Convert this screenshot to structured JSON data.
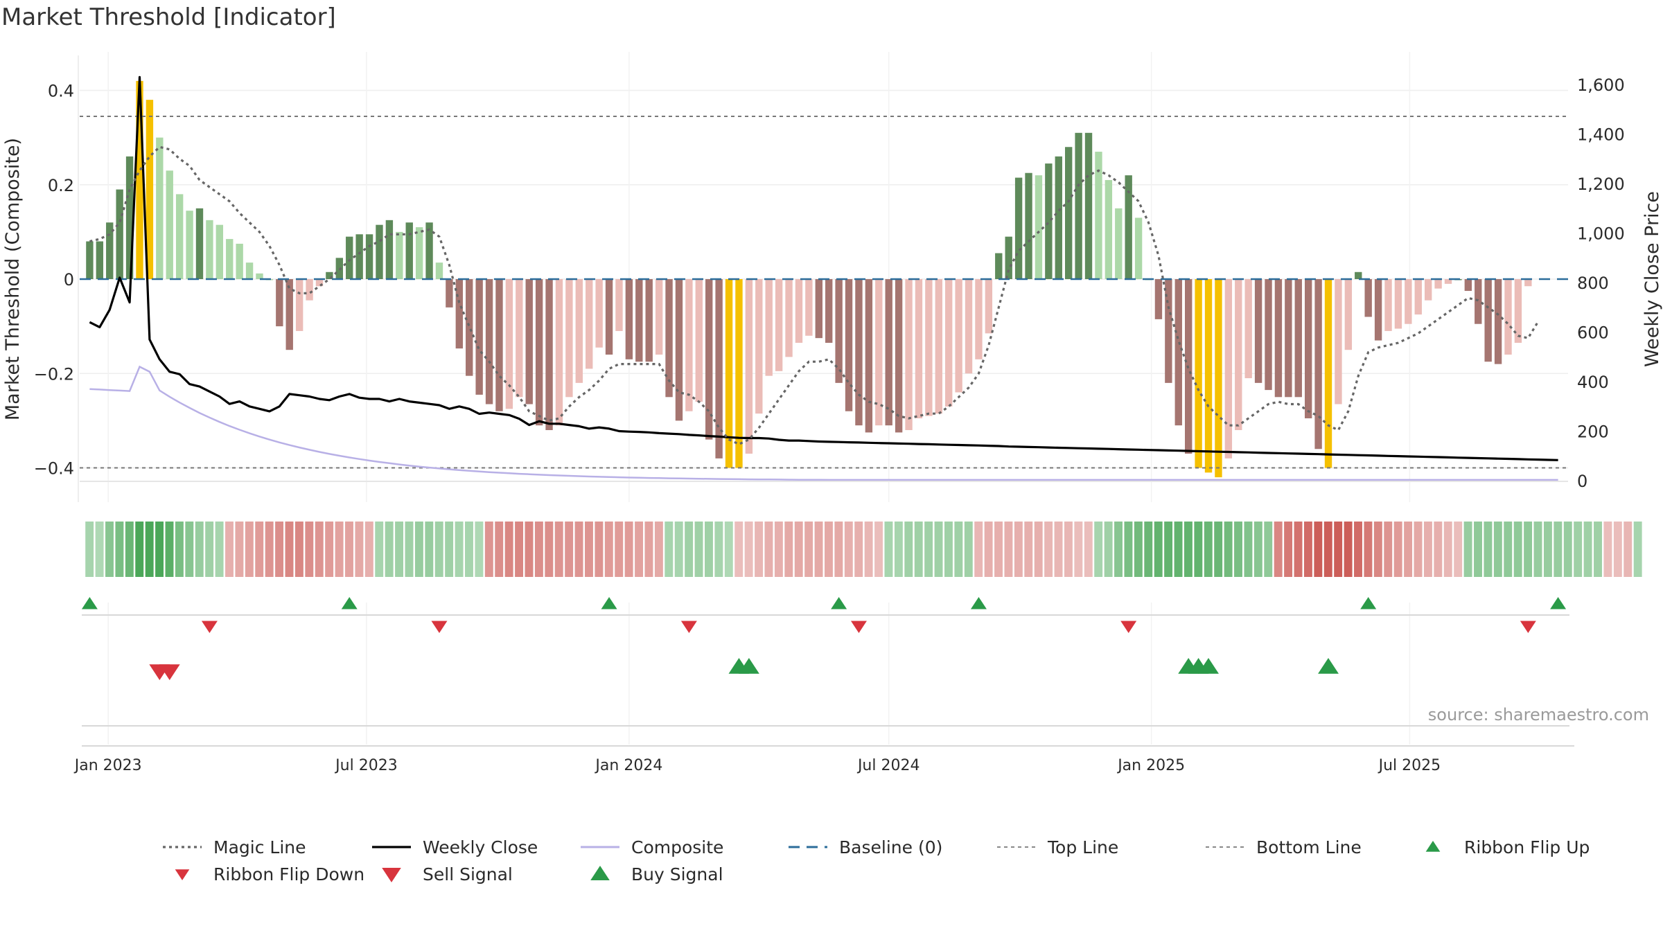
{
  "title": "Market Threshold [Indicator]",
  "source": "source: sharemaestro.com",
  "colors": {
    "dark_green": "#5e8a5a",
    "light_green": "#acd8a8",
    "dark_red": "#a57570",
    "light_red": "#ebbcb7",
    "gold": "#f5c000",
    "close": "#000000",
    "composite": "#b8b0e6",
    "magic": "#666666",
    "baseline": "#2b6c9a",
    "signal_green": "#2a9a48",
    "signal_red": "#d8343d"
  },
  "chart_data": {
    "type": "bar",
    "title": "Market Threshold [Indicator]",
    "y_left_label": "Market Threshold (Composite)",
    "y_right_label": "Weekly Close Price",
    "y_left_range": [
      -0.43,
      0.44
    ],
    "y_right_range": [
      0,
      1700
    ],
    "y_left_ticks": [
      {
        "value": 0.4,
        "label": "0.4"
      },
      {
        "value": 0.2,
        "label": "0.2"
      },
      {
        "value": 0,
        "label": "0"
      },
      {
        "value": -0.2,
        "label": "−0.2"
      },
      {
        "value": -0.4,
        "label": "−0.4"
      }
    ],
    "y_right_ticks": [
      {
        "value": 1600,
        "label": "1,600"
      },
      {
        "value": 1400,
        "label": "1,400"
      },
      {
        "value": 1200,
        "label": "1,200"
      },
      {
        "value": 1000,
        "label": "1,000"
      },
      {
        "value": 800,
        "label": "800"
      },
      {
        "value": 600,
        "label": "600"
      },
      {
        "value": 400,
        "label": "400"
      },
      {
        "value": 200,
        "label": "200"
      },
      {
        "value": 0,
        "label": "0"
      }
    ],
    "x_range": [
      "2022-12-12",
      "2025-10-20"
    ],
    "x_ticks": [
      {
        "date": "2023-01-01",
        "label": "Jan 2023"
      },
      {
        "date": "2023-07-01",
        "label": "Jul 2023"
      },
      {
        "date": "2024-01-01",
        "label": "Jan 2024"
      },
      {
        "date": "2024-07-01",
        "label": "Jul 2024"
      },
      {
        "date": "2025-01-01",
        "label": "Jan 2025"
      },
      {
        "date": "2025-07-01",
        "label": "Jul 2025"
      }
    ],
    "top_line": 0.345,
    "bottom_line": -0.4,
    "baseline": 0,
    "start_date": "2022-12-19",
    "composite": [
      0.08,
      0.08,
      0.12,
      0.19,
      0.26,
      0.42,
      0.38,
      0.3,
      0.23,
      0.18,
      0.145,
      0.15,
      0.125,
      0.115,
      0.085,
      0.075,
      0.035,
      0.012,
      0,
      -0.1,
      -0.15,
      -0.11,
      -0.045,
      -0.015,
      0.015,
      0.045,
      0.09,
      0.095,
      0.095,
      0.115,
      0.125,
      0.1,
      0.12,
      0.11,
      0.12,
      0.035,
      -0.06,
      -0.147,
      -0.205,
      -0.245,
      -0.265,
      -0.28,
      -0.275,
      -0.25,
      -0.265,
      -0.31,
      -0.32,
      -0.31,
      -0.25,
      -0.22,
      -0.19,
      -0.145,
      -0.16,
      -0.11,
      -0.17,
      -0.175,
      -0.175,
      -0.16,
      -0.25,
      -0.3,
      -0.28,
      -0.26,
      -0.34,
      -0.38,
      -0.4,
      -0.4,
      -0.37,
      -0.285,
      -0.205,
      -0.195,
      -0.165,
      -0.135,
      -0.12,
      -0.125,
      -0.135,
      -0.22,
      -0.28,
      -0.31,
      -0.325,
      -0.31,
      -0.31,
      -0.325,
      -0.32,
      -0.295,
      -0.29,
      -0.285,
      -0.27,
      -0.24,
      -0.2,
      -0.17,
      -0.115,
      0.055,
      0.09,
      0.215,
      0.225,
      0.22,
      0.245,
      0.26,
      0.28,
      0.31,
      0.31,
      0.27,
      0.21,
      0.15,
      0.22,
      0.13,
      0,
      -0.085,
      -0.22,
      -0.31,
      -0.37,
      -0.4,
      -0.41,
      -0.42,
      -0.38,
      -0.32,
      -0.21,
      -0.22,
      -0.235,
      -0.25,
      -0.25,
      -0.25,
      -0.295,
      -0.36,
      -0.4,
      -0.265,
      -0.15,
      0.015,
      -0.08,
      -0.13,
      -0.11,
      -0.105,
      -0.095,
      -0.075,
      -0.045,
      -0.02,
      -0.01,
      0,
      -0.025,
      -0.095,
      -0.175,
      -0.18,
      -0.16,
      -0.135,
      -0.015
    ],
    "composite_series_name": "Composite",
    "weekly_close": [
      640,
      620,
      690,
      820,
      720,
      1630,
      570,
      490,
      440,
      430,
      390,
      380,
      360,
      340,
      310,
      320,
      300,
      290,
      280,
      300,
      350,
      345,
      340,
      330,
      325,
      340,
      350,
      335,
      330,
      330,
      320,
      330,
      320,
      315,
      310,
      305,
      290,
      300,
      290,
      270,
      275,
      270,
      265,
      250,
      225,
      240,
      230,
      230,
      225,
      220,
      210,
      215,
      210,
      200,
      198,
      197,
      195,
      192,
      190,
      188,
      185,
      183,
      180,
      178,
      175,
      173,
      172,
      172,
      170,
      165,
      162,
      162,
      160,
      158,
      157,
      156,
      155,
      154,
      153,
      152,
      151,
      150,
      149,
      148,
      147,
      146,
      145,
      144,
      143,
      142,
      141,
      140,
      138,
      137,
      136,
      135,
      134,
      133,
      132,
      131,
      130,
      129,
      128,
      127,
      126,
      125,
      124,
      123,
      122,
      121,
      120,
      119,
      118,
      117,
      116,
      115,
      114,
      113,
      112,
      111,
      110,
      109,
      108,
      107,
      106,
      105,
      104,
      103,
      102,
      101,
      100,
      99,
      98,
      97,
      96,
      95,
      94,
      93,
      92,
      91,
      90,
      89,
      88,
      87,
      86,
      85,
      84,
      83
    ],
    "magic_line": [
      0.08,
      0.085,
      0.095,
      0.12,
      0.19,
      0.23,
      0.26,
      0.28,
      0.275,
      0.255,
      0.24,
      0.21,
      0.195,
      0.18,
      0.165,
      0.14,
      0.12,
      0.1,
      0.07,
      0.03,
      -0.02,
      -0.03,
      -0.03,
      -0.015,
      0,
      0.02,
      0.04,
      0.055,
      0.07,
      0.08,
      0.095,
      0.095,
      0.095,
      0.1,
      0.105,
      0.09,
      0.03,
      -0.05,
      -0.1,
      -0.15,
      -0.175,
      -0.205,
      -0.225,
      -0.25,
      -0.28,
      -0.29,
      -0.3,
      -0.295,
      -0.27,
      -0.25,
      -0.235,
      -0.215,
      -0.19,
      -0.18,
      -0.18,
      -0.18,
      -0.18,
      -0.18,
      -0.215,
      -0.24,
      -0.245,
      -0.26,
      -0.28,
      -0.315,
      -0.34,
      -0.35,
      -0.34,
      -0.315,
      -0.285,
      -0.255,
      -0.225,
      -0.195,
      -0.175,
      -0.175,
      -0.17,
      -0.19,
      -0.22,
      -0.245,
      -0.26,
      -0.265,
      -0.275,
      -0.29,
      -0.295,
      -0.29,
      -0.285,
      -0.285,
      -0.27,
      -0.25,
      -0.23,
      -0.2,
      -0.14,
      -0.06,
      0.02,
      0.06,
      0.08,
      0.1,
      0.12,
      0.145,
      0.165,
      0.2,
      0.22,
      0.23,
      0.22,
      0.205,
      0.185,
      0.165,
      0.12,
      0.05,
      -0.06,
      -0.13,
      -0.19,
      -0.235,
      -0.27,
      -0.29,
      -0.31,
      -0.31,
      -0.295,
      -0.28,
      -0.265,
      -0.26,
      -0.265,
      -0.265,
      -0.28,
      -0.29,
      -0.31,
      -0.32,
      -0.28,
      -0.205,
      -0.155,
      -0.145,
      -0.14,
      -0.135,
      -0.125,
      -0.115,
      -0.1,
      -0.085,
      -0.07,
      -0.055,
      -0.04,
      -0.045,
      -0.06,
      -0.075,
      -0.095,
      -0.12,
      -0.125,
      -0.09
    ],
    "magic_series_name": "Magic Line",
    "close_series_name": "Weekly Close",
    "ribbon": [
      0.3,
      0.25,
      0.5,
      0.6,
      0.7,
      0.9,
      0.9,
      0.9,
      0.8,
      0.6,
      0.5,
      0.4,
      0.35,
      0.3,
      -0.3,
      -0.35,
      -0.4,
      -0.45,
      -0.5,
      -0.55,
      -0.6,
      -0.6,
      -0.55,
      -0.5,
      -0.45,
      -0.4,
      -0.4,
      -0.35,
      -0.3,
      0.3,
      0.35,
      0.35,
      0.35,
      0.4,
      0.4,
      0.35,
      0.35,
      0.3,
      0.3,
      0.25,
      -0.5,
      -0.55,
      -0.6,
      -0.6,
      -0.6,
      -0.55,
      -0.55,
      -0.5,
      -0.5,
      -0.5,
      -0.5,
      -0.5,
      -0.45,
      -0.45,
      -0.45,
      -0.4,
      -0.4,
      -0.35,
      0.3,
      0.3,
      0.35,
      0.35,
      0.35,
      0.3,
      0.25,
      -0.2,
      -0.2,
      -0.25,
      -0.3,
      -0.3,
      -0.35,
      -0.35,
      -0.35,
      -0.35,
      -0.35,
      -0.35,
      -0.3,
      -0.3,
      -0.25,
      -0.2,
      0.3,
      0.3,
      0.35,
      0.35,
      0.35,
      0.35,
      0.35,
      0.35,
      0.35,
      -0.25,
      -0.3,
      -0.3,
      -0.3,
      -0.3,
      -0.3,
      -0.3,
      -0.25,
      -0.25,
      -0.25,
      -0.2,
      -0.2,
      0.3,
      0.35,
      0.5,
      0.6,
      0.65,
      0.7,
      0.75,
      0.75,
      0.75,
      0.75,
      0.75,
      0.7,
      0.7,
      0.65,
      0.6,
      0.55,
      0.5,
      0.45,
      -0.6,
      -0.7,
      -0.75,
      -0.8,
      -0.9,
      -0.9,
      -0.9,
      -0.9,
      -0.8,
      -0.7,
      -0.6,
      -0.5,
      -0.45,
      -0.4,
      -0.35,
      -0.3,
      -0.3,
      -0.25,
      -0.2,
      0.4,
      0.45,
      0.45,
      0.45,
      0.45,
      0.45,
      0.45,
      0.4,
      0.4,
      0.4,
      0.4,
      0.35,
      0.35,
      0.35,
      -0.2,
      -0.2,
      -0.25,
      0.3
    ],
    "buy_signal_dates": [
      "2022-12-19",
      "2023-06-19",
      "2023-12-18",
      "2024-05-27",
      "2024-09-02",
      "2025-06-02",
      "2025-10-13"
    ],
    "sell_signal_dates": [
      "2023-03-13",
      "2023-08-21",
      "2024-02-12",
      "2024-06-10",
      "2024-12-16",
      "2025-09-22"
    ],
    "ribbon_flip_down_dates": [
      "2023-02-06",
      "2023-02-13"
    ],
    "ribbon_flip_up_dates": [
      "2024-03-18",
      "2024-03-25",
      "2025-01-27",
      "2025-02-03",
      "2025-02-10",
      "2025-05-05"
    ]
  },
  "legend": [
    {
      "label": "Magic Line",
      "key": "magic"
    },
    {
      "label": "Weekly Close",
      "key": "close"
    },
    {
      "label": "Composite",
      "key": "composite"
    },
    {
      "label": "Baseline (0)",
      "key": "baseline"
    },
    {
      "label": "Top Line",
      "key": "topline"
    },
    {
      "label": "Bottom Line",
      "key": "bottomline"
    },
    {
      "label": "Ribbon Flip Up",
      "key": "flipup"
    },
    {
      "label": "Ribbon Flip Down",
      "key": "flipdown"
    },
    {
      "label": "Sell Signal",
      "key": "sell"
    },
    {
      "label": "Buy Signal",
      "key": "buy"
    }
  ]
}
